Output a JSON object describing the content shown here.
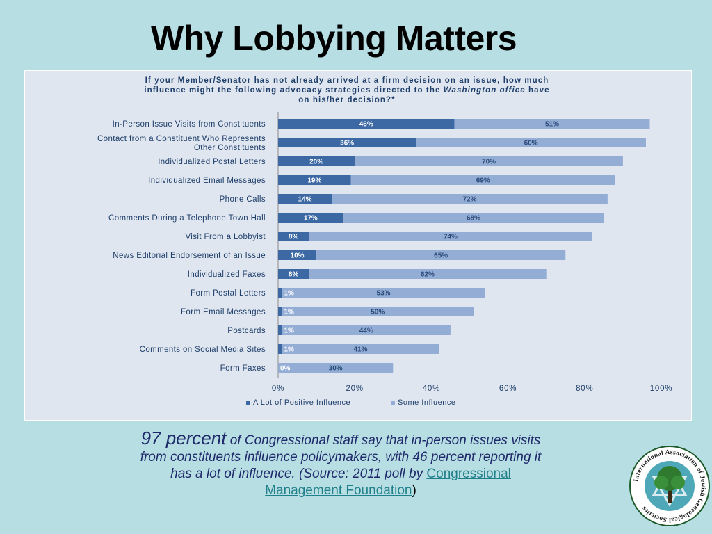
{
  "slide": {
    "title": "Why Lobbying Matters"
  },
  "chart_data": {
    "type": "bar",
    "orientation": "horizontal",
    "stacked": true,
    "title_lines": [
      "If your Member/Senator has not already arrived at a firm decision on an issue, how much",
      "influence might the following advocacy strategies directed to the Washington office have",
      "on his/her decision?*"
    ],
    "title_emphasis": "Washington office",
    "categories": [
      [
        "In-Person Issue Visits from Constituents"
      ],
      [
        "Contact from a Constituent Who Represents",
        "Other Constituents"
      ],
      [
        "Individualized Postal Letters"
      ],
      [
        "Individualized Email Messages"
      ],
      [
        "Phone Calls"
      ],
      [
        "Comments During a Telephone Town Hall"
      ],
      [
        "Visit From a Lobbyist"
      ],
      [
        "News Editorial Endorsement of an Issue"
      ],
      [
        "Individualized Faxes"
      ],
      [
        "Form Postal Letters"
      ],
      [
        "Form Email Messages"
      ],
      [
        "Postcards"
      ],
      [
        "Comments on Social Media Sites"
      ],
      [
        "Form Faxes"
      ]
    ],
    "series": [
      {
        "name": "A Lot of Positive Influence",
        "color": "#3c68a4",
        "values": [
          46,
          36,
          20,
          19,
          14,
          17,
          8,
          10,
          8,
          1,
          1,
          1,
          1,
          0
        ]
      },
      {
        "name": "Some Influence",
        "color": "#94add5",
        "values": [
          51,
          60,
          70,
          69,
          72,
          68,
          74,
          65,
          62,
          53,
          50,
          44,
          41,
          30
        ]
      }
    ],
    "value_suffix": "%",
    "xlim": [
      0,
      100
    ],
    "xticks": [
      "0%",
      "20%",
      "40%",
      "60%",
      "80%",
      "100%"
    ],
    "legend_position": "bottom",
    "grid": false
  },
  "caption": {
    "lead": "97 percent",
    "body": "of Congressional staff say that in-person issues visits from constituents influence policymakers, with 46 percent reporting it has a lot of influence. (Source: 2011 poll by",
    "link_text": "Congressional Management Foundation",
    "close": ")"
  },
  "logo": {
    "text": "International Association of Jewish Genealogical Societies",
    "icon": "tree-star-icon"
  }
}
